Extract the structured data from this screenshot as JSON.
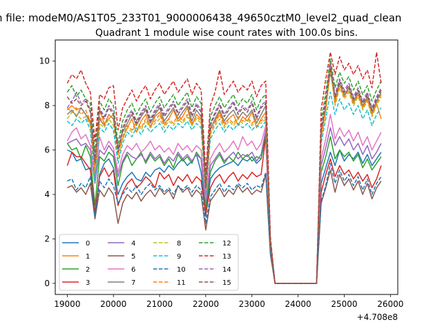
{
  "chart_data": {
    "type": "line",
    "suptitle": "n file: modeM0/AS1T05_233T01_9000006438_49650cztM0_level2_quad_clean",
    "title": "Quadrant 1 module wise count rates with 100.0s bins.",
    "xlabel": "",
    "ylabel": "",
    "x_offset_label": "+4.708e8",
    "xlim": [
      18740,
      26160
    ],
    "ylim": [
      -0.5,
      10.95
    ],
    "xticks": [
      19000,
      20000,
      21000,
      22000,
      23000,
      24000,
      25000,
      26000
    ],
    "yticks": [
      0,
      2,
      4,
      6,
      8,
      10
    ],
    "legend_position": "lower-left",
    "x": [
      19000,
      19100,
      19200,
      19300,
      19400,
      19500,
      19600,
      19700,
      19800,
      19900,
      20000,
      20100,
      20200,
      20300,
      20400,
      20500,
      20600,
      20700,
      20800,
      20900,
      21000,
      21100,
      21200,
      21300,
      21400,
      21500,
      21600,
      21700,
      21800,
      21900,
      22000,
      22100,
      22200,
      22300,
      22400,
      22500,
      22600,
      22700,
      22800,
      22900,
      23000,
      23100,
      23200,
      23300,
      23400,
      23500,
      23600,
      23700,
      23800,
      23900,
      24000,
      24100,
      24200,
      24300,
      24400,
      24500,
      24600,
      24700,
      24800,
      24900,
      25000,
      25100,
      25200,
      25300,
      25400,
      25500,
      25600,
      25700,
      25800
    ],
    "series": [
      {
        "name": "0",
        "color": "#1f77b4",
        "dash": "solid",
        "values": [
          6.0,
          5.9,
          5.5,
          5.6,
          5.1,
          5.2,
          3.0,
          4.9,
          5.4,
          5.6,
          5.2,
          4.0,
          4.5,
          4.8,
          5.0,
          4.7,
          4.6,
          5.0,
          4.8,
          5.1,
          5.2,
          5.0,
          5.3,
          5.1,
          5.4,
          5.6,
          5.3,
          5.5,
          5.8,
          5.0,
          3.0,
          4.7,
          5.0,
          5.2,
          5.3,
          5.4,
          5.5,
          5.3,
          5.6,
          5.5,
          5.7,
          5.4,
          5.6,
          6.6,
          1.7,
          0,
          0,
          0,
          0,
          0,
          0,
          0,
          0,
          0,
          0,
          4.5,
          5.2,
          5.9,
          5.3,
          6.0,
          5.5,
          5.8,
          5.6,
          5.9,
          5.4,
          5.8,
          5.3,
          5.6,
          5.9
        ]
      },
      {
        "name": "1",
        "color": "#ff7f0e",
        "dash": "solid",
        "values": [
          7.8,
          8.0,
          7.8,
          7.9,
          7.6,
          7.2,
          5.3,
          7.8,
          7.2,
          7.4,
          7.6,
          6.0,
          6.5,
          7.0,
          7.4,
          6.8,
          7.3,
          7.6,
          7.0,
          7.5,
          7.7,
          7.2,
          7.4,
          7.8,
          7.3,
          7.5,
          7.9,
          7.1,
          7.6,
          7.4,
          4.3,
          7.0,
          7.3,
          7.7,
          7.2,
          7.4,
          7.6,
          7.1,
          7.5,
          7.3,
          7.7,
          7.0,
          7.4,
          7.7,
          1.8,
          0,
          0,
          0,
          0,
          0,
          0,
          0,
          0,
          0,
          0,
          6.7,
          7.9,
          10.0,
          8.1,
          9.0,
          8.4,
          8.8,
          8.1,
          8.5,
          7.9,
          8.3,
          7.6,
          8.1,
          7.4
        ]
      },
      {
        "name": "2",
        "color": "#2ca02c",
        "dash": "solid",
        "values": [
          6.3,
          6.0,
          6.1,
          5.6,
          6.2,
          5.7,
          3.5,
          5.7,
          5.5,
          5.9,
          5.7,
          4.4,
          5.4,
          5.8,
          5.3,
          5.6,
          5.9,
          5.4,
          5.8,
          5.5,
          5.7,
          5.3,
          5.6,
          5.2,
          5.8,
          5.5,
          5.7,
          5.4,
          5.9,
          5.6,
          3.3,
          5.0,
          5.5,
          5.8,
          5.4,
          5.7,
          5.5,
          5.9,
          5.6,
          5.8,
          5.5,
          5.7,
          5.6,
          6.8,
          1.6,
          0,
          0,
          0,
          0,
          0,
          0,
          0,
          0,
          0,
          0,
          5.0,
          5.7,
          6.6,
          5.6,
          6.0,
          5.7,
          5.9,
          5.5,
          5.8,
          5.2,
          5.6,
          5.1,
          5.4,
          5.7
        ]
      },
      {
        "name": "3",
        "color": "#d62728",
        "dash": "solid",
        "values": [
          5.3,
          5.9,
          5.7,
          5.7,
          5.4,
          5.1,
          3.2,
          4.8,
          5.2,
          4.8,
          5.1,
          3.5,
          4.1,
          4.5,
          4.7,
          4.3,
          4.5,
          4.8,
          4.6,
          4.3,
          5.0,
          4.7,
          4.9,
          4.4,
          4.8,
          4.6,
          4.9,
          4.5,
          4.8,
          4.6,
          3.1,
          4.3,
          4.7,
          4.9,
          4.5,
          4.8,
          5.0,
          4.6,
          4.9,
          4.7,
          5.0,
          4.8,
          4.9,
          6.6,
          1.5,
          0,
          0,
          0,
          0,
          0,
          0,
          0,
          0,
          0,
          0,
          4.1,
          4.9,
          5.6,
          4.8,
          5.3,
          4.9,
          5.1,
          4.7,
          5.0,
          4.6,
          4.9,
          4.3,
          4.7,
          5.3
        ]
      },
      {
        "name": "4",
        "color": "#9467bd",
        "dash": "solid",
        "values": [
          6.3,
          6.4,
          6.5,
          6.2,
          6.3,
          6.0,
          4.5,
          6.0,
          5.8,
          6.2,
          5.9,
          4.8,
          5.5,
          5.9,
          5.7,
          5.6,
          5.8,
          5.5,
          5.9,
          5.6,
          5.8,
          5.4,
          5.7,
          5.5,
          5.9,
          5.6,
          5.8,
          5.5,
          5.8,
          5.6,
          3.6,
          5.3,
          5.6,
          5.9,
          5.5,
          5.7,
          5.9,
          5.6,
          5.8,
          5.7,
          5.9,
          5.5,
          5.8,
          6.9,
          1.7,
          0,
          0,
          0,
          0,
          0,
          0,
          0,
          0,
          0,
          0,
          5.3,
          6.1,
          7.0,
          6.2,
          6.6,
          6.2,
          6.5,
          6.0,
          6.3,
          5.8,
          6.2,
          5.6,
          5.9,
          6.3
        ]
      },
      {
        "name": "5",
        "color": "#8c564b",
        "dash": "solid",
        "values": [
          4.3,
          4.4,
          4.1,
          4.3,
          4.0,
          4.5,
          2.9,
          4.2,
          3.9,
          4.3,
          4.0,
          2.7,
          3.6,
          4.0,
          3.8,
          4.1,
          3.7,
          4.0,
          4.2,
          3.9,
          4.3,
          4.0,
          4.2,
          3.8,
          4.4,
          4.1,
          4.3,
          3.9,
          4.2,
          4.0,
          2.4,
          3.7,
          4.0,
          4.3,
          3.9,
          4.2,
          4.0,
          4.4,
          4.1,
          4.3,
          4.0,
          4.2,
          4.1,
          4.9,
          1.3,
          0,
          0,
          0,
          0,
          0,
          0,
          0,
          0,
          0,
          0,
          3.6,
          4.3,
          5.1,
          4.1,
          4.9,
          4.4,
          4.7,
          4.2,
          4.6,
          4.0,
          4.5,
          3.8,
          4.3,
          4.6
        ]
      },
      {
        "name": "6",
        "color": "#e377c2",
        "dash": "solid",
        "values": [
          6.4,
          6.8,
          7.0,
          6.5,
          6.7,
          6.2,
          4.7,
          6.6,
          6.0,
          6.4,
          6.1,
          5.0,
          5.8,
          6.2,
          6.0,
          6.3,
          5.9,
          6.1,
          6.4,
          6.0,
          6.2,
          5.9,
          6.1,
          5.8,
          6.3,
          6.0,
          6.2,
          5.9,
          6.2,
          6.0,
          3.8,
          5.6,
          6.0,
          6.3,
          5.9,
          6.1,
          6.4,
          6.0,
          6.6,
          6.2,
          6.4,
          6.0,
          6.3,
          7.1,
          1.8,
          0,
          0,
          0,
          0,
          0,
          0,
          0,
          0,
          0,
          0,
          5.6,
          6.5,
          7.6,
          6.5,
          7.0,
          6.6,
          6.9,
          6.4,
          6.8,
          6.2,
          6.6,
          6.0,
          6.4,
          6.8
        ]
      },
      {
        "name": "7",
        "color": "#7f7f7f",
        "dash": "solid",
        "values": [
          7.6,
          7.8,
          7.5,
          7.9,
          7.6,
          7.3,
          5.5,
          7.4,
          7.1,
          7.6,
          7.4,
          6.1,
          6.8,
          7.2,
          7.6,
          7.1,
          7.5,
          7.8,
          7.2,
          7.6,
          7.9,
          7.3,
          7.6,
          7.9,
          7.4,
          7.7,
          8.0,
          7.3,
          7.8,
          7.5,
          4.2,
          6.9,
          7.4,
          7.8,
          7.3,
          7.6,
          7.8,
          7.4,
          7.7,
          7.5,
          7.8,
          7.2,
          7.6,
          8.0,
          1.9,
          0,
          0,
          0,
          0,
          0,
          0,
          0,
          0,
          0,
          0,
          6.8,
          8.0,
          9.5,
          8.3,
          9.0,
          8.5,
          8.8,
          8.2,
          8.6,
          8.0,
          8.4,
          7.7,
          8.2,
          8.6
        ]
      },
      {
        "name": "8",
        "color": "#bcbd22",
        "dash": "dashed",
        "values": [
          7.4,
          7.7,
          7.6,
          7.4,
          7.5,
          7.1,
          4.9,
          7.2,
          7.0,
          7.4,
          7.1,
          5.6,
          6.5,
          7.0,
          6.8,
          7.2,
          6.9,
          7.3,
          7.0,
          7.2,
          7.4,
          7.0,
          7.3,
          7.1,
          7.4,
          7.2,
          7.5,
          7.1,
          7.4,
          7.2,
          4.1,
          6.7,
          7.1,
          7.4,
          7.0,
          7.3,
          7.1,
          7.4,
          7.2,
          7.4,
          7.1,
          7.3,
          7.2,
          7.4,
          1.8,
          0,
          0,
          0,
          0,
          0,
          0,
          0,
          0,
          0,
          0,
          6.5,
          7.7,
          9.6,
          8.0,
          8.8,
          8.3,
          8.6,
          8.0,
          8.4,
          7.8,
          8.2,
          7.5,
          8.0,
          8.4
        ]
      },
      {
        "name": "9",
        "color": "#17becf",
        "dash": "dashed",
        "values": [
          7.3,
          7.1,
          7.4,
          7.2,
          7.4,
          6.9,
          4.6,
          7.0,
          6.8,
          7.2,
          6.9,
          5.4,
          6.3,
          6.8,
          6.6,
          7.0,
          6.7,
          7.1,
          6.8,
          7.0,
          7.2,
          6.8,
          7.1,
          6.9,
          7.2,
          7.0,
          7.3,
          6.9,
          7.2,
          7.0,
          4.0,
          6.5,
          6.9,
          7.2,
          6.8,
          7.1,
          6.9,
          7.2,
          7.0,
          7.2,
          6.9,
          7.1,
          7.0,
          7.3,
          1.8,
          0,
          0,
          0,
          0,
          0,
          0,
          0,
          0,
          0,
          0,
          6.3,
          7.4,
          8.6,
          7.6,
          8.3,
          7.8,
          8.1,
          7.6,
          8.0,
          7.4,
          7.8,
          7.1,
          7.6,
          7.9
        ]
      },
      {
        "name": "10",
        "color": "#1f77b4",
        "dash": "dashed",
        "values": [
          4.6,
          4.7,
          4.2,
          4.5,
          4.3,
          4.8,
          3.0,
          4.6,
          4.3,
          4.7,
          4.4,
          3.6,
          4.0,
          4.3,
          4.1,
          4.4,
          4.0,
          4.3,
          4.5,
          4.2,
          4.4,
          4.1,
          4.3,
          4.0,
          4.4,
          4.2,
          4.4,
          4.1,
          4.4,
          4.2,
          2.7,
          3.9,
          4.2,
          4.5,
          4.1,
          4.4,
          4.2,
          4.5,
          4.3,
          4.5,
          4.2,
          4.4,
          4.3,
          5.0,
          1.4,
          0,
          0,
          0,
          0,
          0,
          0,
          0,
          0,
          0,
          0,
          3.7,
          4.4,
          5.4,
          4.5,
          5.1,
          4.6,
          4.9,
          4.4,
          4.8,
          4.2,
          4.7,
          4.0,
          4.5,
          4.8
        ]
      },
      {
        "name": "11",
        "color": "#ff7f0e",
        "dash": "dashed",
        "values": [
          7.9,
          7.7,
          7.9,
          7.6,
          7.8,
          7.3,
          5.0,
          7.5,
          7.1,
          7.6,
          7.4,
          5.8,
          6.6,
          7.1,
          6.9,
          7.3,
          7.0,
          7.4,
          7.1,
          7.3,
          7.6,
          7.1,
          7.4,
          7.2,
          7.6,
          7.3,
          7.6,
          7.2,
          7.5,
          7.3,
          4.2,
          6.8,
          7.2,
          7.6,
          7.1,
          7.4,
          7.2,
          7.5,
          7.3,
          7.5,
          7.2,
          7.4,
          7.3,
          7.5,
          1.8,
          0,
          0,
          0,
          0,
          0,
          0,
          0,
          0,
          0,
          0,
          6.6,
          7.8,
          9.8,
          8.1,
          8.9,
          8.4,
          8.7,
          8.1,
          8.5,
          7.9,
          8.3,
          7.6,
          8.1,
          8.5
        ]
      },
      {
        "name": "12",
        "color": "#2ca02c",
        "dash": "dashed",
        "values": [
          8.6,
          8.9,
          8.4,
          8.7,
          8.3,
          8.1,
          5.9,
          8.2,
          7.8,
          8.3,
          8.0,
          6.3,
          7.3,
          7.8,
          8.1,
          7.6,
          8.0,
          8.3,
          7.7,
          8.1,
          8.4,
          7.9,
          8.2,
          8.5,
          8.0,
          8.3,
          8.6,
          7.9,
          8.4,
          8.1,
          4.6,
          7.5,
          8.0,
          8.4,
          7.9,
          8.2,
          8.5,
          8.0,
          8.3,
          8.1,
          8.5,
          7.8,
          8.3,
          8.5,
          2.0,
          0,
          0,
          0,
          0,
          0,
          0,
          0,
          0,
          0,
          0,
          7.3,
          8.6,
          10.1,
          8.8,
          9.5,
          9.0,
          9.3,
          8.7,
          9.1,
          8.5,
          8.9,
          8.2,
          8.7,
          9.1
        ]
      },
      {
        "name": "13",
        "color": "#d62728",
        "dash": "dashed",
        "values": [
          9.0,
          9.4,
          9.2,
          9.6,
          9.0,
          8.6,
          6.4,
          8.5,
          8.3,
          8.8,
          8.9,
          6.9,
          7.9,
          8.3,
          8.7,
          8.2,
          8.6,
          8.9,
          8.3,
          8.7,
          9.0,
          8.5,
          8.8,
          9.1,
          8.6,
          8.9,
          9.2,
          8.5,
          9.0,
          8.7,
          5.0,
          8.0,
          8.6,
          9.6,
          8.5,
          8.8,
          9.1,
          8.6,
          8.9,
          8.7,
          9.1,
          8.4,
          8.9,
          9.1,
          2.1,
          0,
          0,
          0,
          0,
          0,
          0,
          0,
          0,
          0,
          0,
          7.8,
          9.2,
          10.4,
          9.4,
          10.2,
          9.6,
          9.9,
          9.4,
          9.8,
          9.2,
          9.6,
          8.8,
          10.4,
          9.0
        ]
      },
      {
        "name": "14",
        "color": "#9467bd",
        "dash": "dashed",
        "values": [
          7.9,
          8.2,
          8.6,
          8.1,
          8.3,
          7.8,
          5.6,
          7.9,
          7.5,
          8.0,
          7.7,
          6.0,
          7.0,
          7.5,
          7.8,
          7.3,
          7.7,
          8.0,
          7.4,
          7.8,
          8.1,
          7.6,
          7.9,
          8.2,
          7.7,
          8.0,
          8.3,
          7.6,
          8.1,
          7.8,
          4.4,
          7.2,
          7.7,
          8.1,
          7.6,
          7.9,
          8.2,
          7.7,
          8.0,
          7.8,
          8.2,
          7.5,
          8.0,
          8.2,
          1.9,
          0,
          0,
          0,
          0,
          0,
          0,
          0,
          0,
          0,
          0,
          7.0,
          8.3,
          9.9,
          8.5,
          9.2,
          8.7,
          9.0,
          8.4,
          8.8,
          8.2,
          8.6,
          7.9,
          8.4,
          8.8
        ]
      },
      {
        "name": "15",
        "color": "#8c564b",
        "dash": "dashed",
        "values": [
          8.4,
          8.1,
          8.3,
          8.0,
          8.2,
          7.7,
          5.4,
          7.8,
          7.4,
          7.9,
          7.6,
          5.9,
          6.9,
          7.4,
          7.7,
          7.2,
          7.6,
          7.9,
          7.3,
          7.7,
          8.0,
          7.5,
          7.8,
          8.1,
          7.6,
          7.9,
          8.2,
          7.5,
          8.0,
          7.7,
          4.3,
          7.1,
          7.6,
          8.0,
          7.5,
          7.8,
          8.1,
          7.6,
          7.9,
          7.7,
          8.1,
          7.4,
          7.9,
          8.1,
          1.9,
          0,
          0,
          0,
          0,
          0,
          0,
          0,
          0,
          0,
          0,
          6.9,
          8.2,
          9.7,
          8.4,
          9.1,
          8.6,
          8.9,
          8.3,
          8.7,
          8.1,
          8.5,
          7.8,
          8.3,
          8.7
        ]
      }
    ]
  }
}
